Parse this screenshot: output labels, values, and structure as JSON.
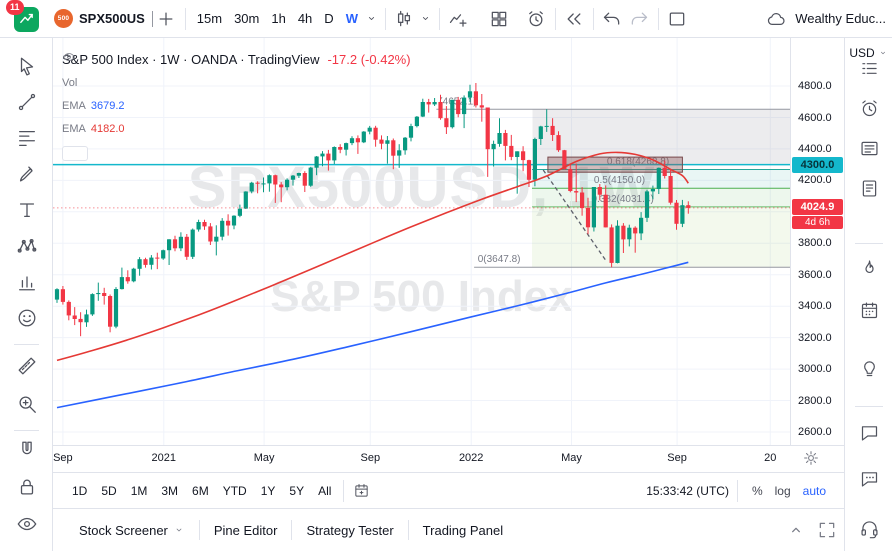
{
  "topbar": {
    "notification_count": "11",
    "symbol": "SPX500US",
    "symbol_badge": "500",
    "intervals": [
      "15m",
      "30m",
      "1h",
      "4h",
      "D",
      "W"
    ],
    "active_interval": "W",
    "account_label": "Wealthy Educ..."
  },
  "legend": {
    "title": "S&P 500 Index · 1W · OANDA · TradingView",
    "change": "-17.2 (-0.42%)",
    "vol_label": "Vol",
    "ema1_label": "EMA",
    "ema1_value": "3679.2",
    "ema2_label": "EMA",
    "ema2_value": "4182.0"
  },
  "watermark": {
    "line1": "SPX500USD, 1W",
    "line2": "S&P 500 Index"
  },
  "left_toolbar": {
    "tools": [
      {
        "name": "cursor-tool",
        "icon": "cursor"
      },
      {
        "name": "trend-line-tool",
        "icon": "trend"
      },
      {
        "name": "fib-retracement-tool",
        "icon": "fib"
      },
      {
        "name": "brush-tool",
        "icon": "brush"
      },
      {
        "name": "text-tool",
        "icon": "text"
      },
      {
        "name": "xabcd-pattern-tool",
        "icon": "xabcd"
      },
      {
        "name": "forecast-tool",
        "icon": "forecast"
      },
      {
        "name": "emoji-tool",
        "icon": "smiley"
      },
      {
        "name": "ruler-tool",
        "icon": "ruler"
      },
      {
        "name": "zoom-tool",
        "icon": "zoom"
      },
      {
        "name": "magnet-tool",
        "icon": "magnet"
      },
      {
        "name": "lock-all-tool",
        "icon": "lock"
      },
      {
        "name": "hide-all-tool",
        "icon": "eye"
      }
    ]
  },
  "right_sidebar": {
    "currency": "USD",
    "items": [
      {
        "name": "watchlist-button",
        "icon": "wlist"
      },
      {
        "name": "alerts-button",
        "icon": "alarm"
      },
      {
        "name": "news-button",
        "icon": "news"
      },
      {
        "name": "notes-button",
        "icon": "notes"
      },
      {
        "name": "hotlists-button",
        "icon": "flame"
      },
      {
        "name": "calendar-button",
        "icon": "calgrid"
      },
      {
        "name": "ideas-button",
        "icon": "bulb"
      },
      {
        "name": "chat-button",
        "icon": "chat"
      },
      {
        "name": "public-chat-button",
        "icon": "chat2"
      },
      {
        "name": "help-button",
        "icon": "headset"
      }
    ]
  },
  "range_bar": {
    "ranges": [
      "1D",
      "5D",
      "1M",
      "3M",
      "6M",
      "YTD",
      "1Y",
      "5Y",
      "All"
    ],
    "clock": "15:33:42 (UTC)",
    "scales": [
      "%",
      "log",
      "auto"
    ],
    "active_scale": "auto"
  },
  "bottom_tabs": {
    "tabs": [
      "Stock Screener",
      "Pine Editor",
      "Strategy Tester",
      "Trading Panel"
    ]
  },
  "chart_data": {
    "type": "candlestick",
    "symbol": "SPX500USD",
    "timeframe": "1W",
    "exchange": "OANDA",
    "up_color": "#089981",
    "down_color": "#f23645",
    "price_axis": {
      "min": 2600,
      "max": 4800,
      "step": 200
    },
    "time_labels": [
      {
        "text": "Sep",
        "week": 1
      },
      {
        "text": "2021",
        "week": 18.1
      },
      {
        "text": "May",
        "week": 35.1
      },
      {
        "text": "Sep",
        "week": 53.1
      },
      {
        "text": "2022",
        "week": 70.2
      },
      {
        "text": "May",
        "week": 87.2
      },
      {
        "text": "Sep",
        "week": 105.1
      },
      {
        "text": "20",
        "week": 120.9
      }
    ],
    "candles": [
      [
        3442,
        3514,
        3421,
        3508
      ],
      [
        3508,
        3528,
        3410,
        3427
      ],
      [
        3427,
        3437,
        3310,
        3341
      ],
      [
        3341,
        3394,
        3280,
        3319
      ],
      [
        3319,
        3362,
        3209,
        3298
      ],
      [
        3298,
        3378,
        3268,
        3348
      ],
      [
        3348,
        3482,
        3338,
        3477
      ],
      [
        3477,
        3550,
        3434,
        3484
      ],
      [
        3484,
        3517,
        3410,
        3465
      ],
      [
        3465,
        3474,
        3234,
        3270
      ],
      [
        3270,
        3521,
        3260,
        3509
      ],
      [
        3509,
        3645,
        3506,
        3585
      ],
      [
        3585,
        3628,
        3543,
        3558
      ],
      [
        3558,
        3644,
        3552,
        3638
      ],
      [
        3638,
        3712,
        3594,
        3699
      ],
      [
        3699,
        3708,
        3645,
        3663
      ],
      [
        3663,
        3725,
        3633,
        3709
      ],
      [
        3709,
        3740,
        3636,
        3703
      ],
      [
        3703,
        3760,
        3695,
        3756
      ],
      [
        3756,
        3826,
        3662,
        3825
      ],
      [
        3825,
        3848,
        3749,
        3768
      ],
      [
        3768,
        3870,
        3750,
        3841
      ],
      [
        3841,
        3859,
        3694,
        3714
      ],
      [
        3714,
        3894,
        3700,
        3887
      ],
      [
        3887,
        3950,
        3874,
        3935
      ],
      [
        3935,
        3950,
        3885,
        3907
      ],
      [
        3907,
        3928,
        3789,
        3811
      ],
      [
        3811,
        3914,
        3723,
        3842
      ],
      [
        3842,
        3960,
        3819,
        3943
      ],
      [
        3943,
        3984,
        3849,
        3913
      ],
      [
        3913,
        3978,
        3889,
        3975
      ],
      [
        3975,
        4046,
        3966,
        4020
      ],
      [
        4020,
        4131,
        4018,
        4129
      ],
      [
        4129,
        4191,
        4118,
        4185
      ],
      [
        4185,
        4194,
        4118,
        4180
      ],
      [
        4180,
        4218,
        4124,
        4181
      ],
      [
        4181,
        4238,
        4128,
        4233
      ],
      [
        4233,
        4236,
        4057,
        4174
      ],
      [
        4174,
        4189,
        4061,
        4156
      ],
      [
        4156,
        4213,
        4137,
        4204
      ],
      [
        4204,
        4234,
        4167,
        4230
      ],
      [
        4230,
        4249,
        4215,
        4247
      ],
      [
        4247,
        4258,
        4126,
        4166
      ],
      [
        4166,
        4286,
        4159,
        4281
      ],
      [
        4281,
        4355,
        4233,
        4352
      ],
      [
        4352,
        4386,
        4290,
        4370
      ],
      [
        4370,
        4394,
        4262,
        4327
      ],
      [
        4327,
        4416,
        4304,
        4412
      ],
      [
        4412,
        4430,
        4373,
        4395
      ],
      [
        4395,
        4440,
        4358,
        4437
      ],
      [
        4437,
        4481,
        4424,
        4468
      ],
      [
        4468,
        4486,
        4368,
        4442
      ],
      [
        4442,
        4513,
        4437,
        4510
      ],
      [
        4510,
        4546,
        4493,
        4535
      ],
      [
        4535,
        4547,
        4414,
        4459
      ],
      [
        4459,
        4486,
        4398,
        4433
      ],
      [
        4433,
        4482,
        4306,
        4455
      ],
      [
        4455,
        4466,
        4271,
        4357
      ],
      [
        4357,
        4430,
        4279,
        4391
      ],
      [
        4391,
        4476,
        4363,
        4471
      ],
      [
        4471,
        4560,
        4448,
        4545
      ],
      [
        4545,
        4609,
        4537,
        4605
      ],
      [
        4605,
        4719,
        4602,
        4698
      ],
      [
        4698,
        4718,
        4631,
        4683
      ],
      [
        4683,
        4724,
        4673,
        4698
      ],
      [
        4698,
        4744,
        4586,
        4595
      ],
      [
        4595,
        4672,
        4495,
        4538
      ],
      [
        4538,
        4713,
        4530,
        4712
      ],
      [
        4712,
        4731,
        4601,
        4621
      ],
      [
        4621,
        4740,
        4532,
        4726
      ],
      [
        4726,
        4808,
        4698,
        4766
      ],
      [
        4766,
        4819,
        4663,
        4677
      ],
      [
        4677,
        4749,
        4573,
        4663
      ],
      [
        4663,
        4663,
        4222,
        4398
      ],
      [
        4398,
        4453,
        4288,
        4432
      ],
      [
        4432,
        4595,
        4414,
        4501
      ],
      [
        4501,
        4521,
        4327,
        4419
      ],
      [
        4419,
        4489,
        4328,
        4349
      ],
      [
        4349,
        4385,
        4115,
        4385
      ],
      [
        4385,
        4417,
        4258,
        4329
      ],
      [
        4329,
        4331,
        4158,
        4204
      ],
      [
        4204,
        4471,
        4162,
        4463
      ],
      [
        4463,
        4547,
        4425,
        4543
      ],
      [
        4543,
        4652,
        4508,
        4546
      ],
      [
        4546,
        4595,
        4450,
        4488
      ],
      [
        4488,
        4512,
        4381,
        4392
      ],
      [
        4392,
        4394,
        4267,
        4272
      ],
      [
        4272,
        4308,
        4124,
        4132
      ],
      [
        4132,
        4307,
        4062,
        4123
      ],
      [
        4123,
        4157,
        3975,
        4024
      ],
      [
        4024,
        4090,
        3858,
        3901
      ],
      [
        3901,
        4158,
        3875,
        4158
      ],
      [
        4158,
        4177,
        4073,
        4109
      ],
      [
        4109,
        4168,
        3900,
        3901
      ],
      [
        3901,
        3920,
        3647,
        3675
      ],
      [
        3675,
        3946,
        3672,
        3912
      ],
      [
        3912,
        3928,
        3738,
        3825
      ],
      [
        3825,
        3918,
        3780,
        3899
      ],
      [
        3899,
        3908,
        3740,
        3863
      ],
      [
        3863,
        3998,
        3820,
        3962
      ],
      [
        3962,
        4140,
        3935,
        4130
      ],
      [
        4130,
        4167,
        4080,
        4145
      ],
      [
        4145,
        4282,
        4113,
        4280
      ],
      [
        4280,
        4327,
        4212,
        4228
      ],
      [
        4228,
        4266,
        4046,
        4058
      ],
      [
        4058,
        4075,
        3886,
        3924
      ],
      [
        3924,
        4076,
        3903,
        4042.1
      ],
      [
        4042.1,
        4066.8,
        3988,
        4024.9
      ]
    ],
    "emas": [
      {
        "label": "EMA",
        "value": 3679.2,
        "color": "#2962ff",
        "points": [
          [
            0,
            2755
          ],
          [
            10,
            2830
          ],
          [
            20,
            2905
          ],
          [
            30,
            2985
          ],
          [
            40,
            3062
          ],
          [
            50,
            3148
          ],
          [
            60,
            3238
          ],
          [
            70,
            3330
          ],
          [
            78,
            3402
          ],
          [
            86,
            3478
          ],
          [
            93,
            3548
          ],
          [
            99,
            3602
          ],
          [
            103,
            3640
          ],
          [
            107,
            3679
          ]
        ]
      },
      {
        "label": "EMA",
        "value": 4182.0,
        "color": "#e53935",
        "points": [
          [
            0,
            3055
          ],
          [
            6,
            3118
          ],
          [
            12,
            3186
          ],
          [
            18,
            3262
          ],
          [
            24,
            3344
          ],
          [
            30,
            3432
          ],
          [
            36,
            3524
          ],
          [
            42,
            3618
          ],
          [
            48,
            3714
          ],
          [
            54,
            3810
          ],
          [
            60,
            3904
          ],
          [
            66,
            3994
          ],
          [
            72,
            4080
          ],
          [
            78,
            4160
          ],
          [
            83,
            4228
          ],
          [
            88,
            4320
          ],
          [
            92,
            4368
          ],
          [
            95,
            4378
          ],
          [
            98,
            4365
          ],
          [
            101,
            4330
          ],
          [
            104,
            4270
          ],
          [
            106,
            4230
          ],
          [
            107,
            4182
          ]
        ]
      }
    ],
    "horizontal_line": {
      "price": 4300.0,
      "label": "4300.0",
      "color": "#14b8cc"
    },
    "current": {
      "price": 4024.9,
      "label": "4024.9",
      "countdown": "4d 6h",
      "color": "#f23645",
      "change_text": "-17.2 (-0.42%)"
    },
    "fib": {
      "band_start_week": 80.5,
      "levels": [
        {
          "text": "(4652.1)",
          "price": 4652.1,
          "line_from": 64.3,
          "label_week": 64.8,
          "color": "#9598a1"
        },
        {
          "text": "0.618(4268.8)",
          "price": 4268.8,
          "line_from": 80.5,
          "label_week": 93.2,
          "color": "#26a69a"
        },
        {
          "text": "0.5(4150.0)",
          "price": 4150.0,
          "line_from": 80.5,
          "label_week": 91.0,
          "color": "#4caf50"
        },
        {
          "text": "0.382(4031.4)",
          "price": 4031.4,
          "line_from": 80.5,
          "label_week": 90.6,
          "color": "#66bb6a"
        },
        {
          "text": "0(3647.8)",
          "price": 3647.8,
          "line_from": 70.7,
          "label_week": 71.3,
          "color": "#9598a1"
        }
      ],
      "bands": [
        {
          "from": 4268.8,
          "to": 4150.0,
          "color": "rgba(38,166,154,0.10)"
        },
        {
          "from": 4150.0,
          "to": 4031.4,
          "color": "rgba(76,175,80,0.10)"
        },
        {
          "from": 4031.4,
          "to": 3647.8,
          "color": "rgba(139,195,74,0.10)"
        }
      ]
    },
    "boxes": [
      {
        "name": "supply-zone-outer",
        "week_from": 80.6,
        "week_to": 125,
        "price_from": 4652.1,
        "price_to": 4300,
        "fill": "rgba(149,152,161,0.18)",
        "stroke": "none"
      },
      {
        "name": "supply-zone-inner",
        "week_from": 83.2,
        "week_to": 106,
        "price_from": 4348,
        "price_to": 4252,
        "fill": "rgba(143,88,88,0.40)",
        "stroke": "#77484a"
      }
    ],
    "trendline_dashed": {
      "from": [
        82.4,
        4266
      ],
      "to": [
        93.2,
        3681
      ],
      "color": "#5d606b"
    }
  }
}
